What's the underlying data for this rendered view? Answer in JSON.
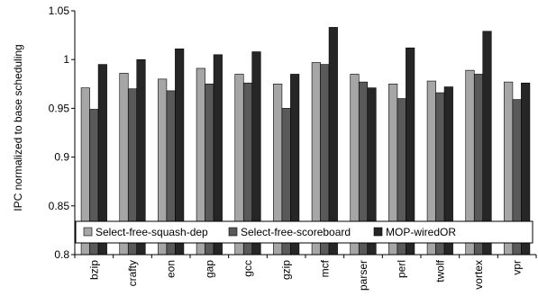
{
  "chart_data": {
    "type": "bar",
    "title": "",
    "xlabel": "",
    "ylabel": "IPC normalized to base scheduling",
    "ylim": [
      0.8,
      1.05
    ],
    "yticks": [
      "0.8",
      "0.85",
      "0.9",
      "0.95",
      "1",
      "1.05"
    ],
    "grid": false,
    "legend_position": "bottom-inside",
    "categories": [
      "bzip",
      "crafty",
      "eon",
      "gap",
      "gcc",
      "gzip",
      "mcf",
      "parser",
      "perl",
      "twolf",
      "vortex",
      "vpr"
    ],
    "series": [
      {
        "name": "Select-free-squash-dep",
        "color": "#a6a6a6",
        "values": [
          0.971,
          0.986,
          0.98,
          0.991,
          0.985,
          0.975,
          0.997,
          0.985,
          0.975,
          0.978,
          0.989,
          0.977
        ]
      },
      {
        "name": "Select-free-scoreboard",
        "color": "#595959",
        "values": [
          0.949,
          0.97,
          0.968,
          0.975,
          0.976,
          0.95,
          0.995,
          0.977,
          0.96,
          0.966,
          0.985,
          0.959
        ]
      },
      {
        "name": "MOP-wiredOR",
        "color": "#262626",
        "values": [
          0.995,
          1.0,
          1.011,
          1.005,
          1.008,
          0.985,
          1.033,
          0.971,
          1.012,
          0.972,
          1.029,
          0.976
        ]
      }
    ]
  }
}
